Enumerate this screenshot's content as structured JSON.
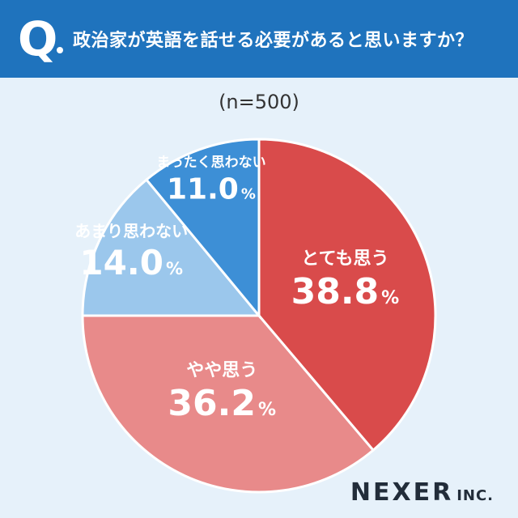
{
  "header": {
    "q_mark": "Q",
    "question": "政治家が英語を話せる必要があると思いますか？"
  },
  "sample_size": "(n=500)",
  "colors": {
    "header_bg": "#1f73bd",
    "page_bg": "#e6f1fa"
  },
  "chart_data": {
    "type": "pie",
    "unit": "%",
    "start": "12 o'clock, clockwise",
    "slices": [
      {
        "label": "とても思う",
        "value": 38.8,
        "value_text": "38.8",
        "color": "#d94b4b"
      },
      {
        "label": "やや思う",
        "value": 36.2,
        "value_text": "36.2",
        "color": "#e88a8a"
      },
      {
        "label": "あまり思わない",
        "value": 14.0,
        "value_text": "14.0",
        "color": "#9bc7ec"
      },
      {
        "label": "まったく思わない",
        "value": 11.0,
        "value_text": "11.0",
        "color": "#3d8fd6"
      }
    ]
  },
  "logo": {
    "name": "NEXER",
    "suffix": "INC."
  }
}
